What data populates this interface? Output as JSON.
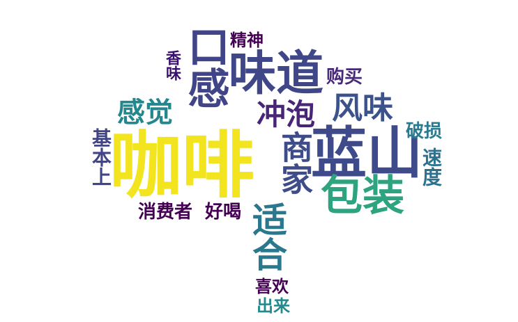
{
  "colors": {
    "yellow": "#f0e51f",
    "navy": "#3f4a8a",
    "indigo": "#3c4f8c",
    "purple": "#46186d",
    "teal": "#23898d",
    "green": "#2fa67f",
    "darkpurple": "#440154"
  },
  "words": {
    "kafei": "咖啡",
    "lanshan": "蓝山",
    "weidao": "味道",
    "kougan": "口感",
    "baozhuang": "包装",
    "chongpao": "冲泡",
    "fengwei": "风味",
    "ganjue": "感觉",
    "shihe": "适合",
    "shangjia": "商家",
    "jingshen": "精神",
    "xiangwei": "香味",
    "goumai": "购买",
    "posun": "破损",
    "sudu": "速度",
    "jibenshang": "基本上",
    "xiaofeizhe": "消费者",
    "haohe": "好喝",
    "xihuan": "喜欢",
    "chulai": "出来"
  }
}
